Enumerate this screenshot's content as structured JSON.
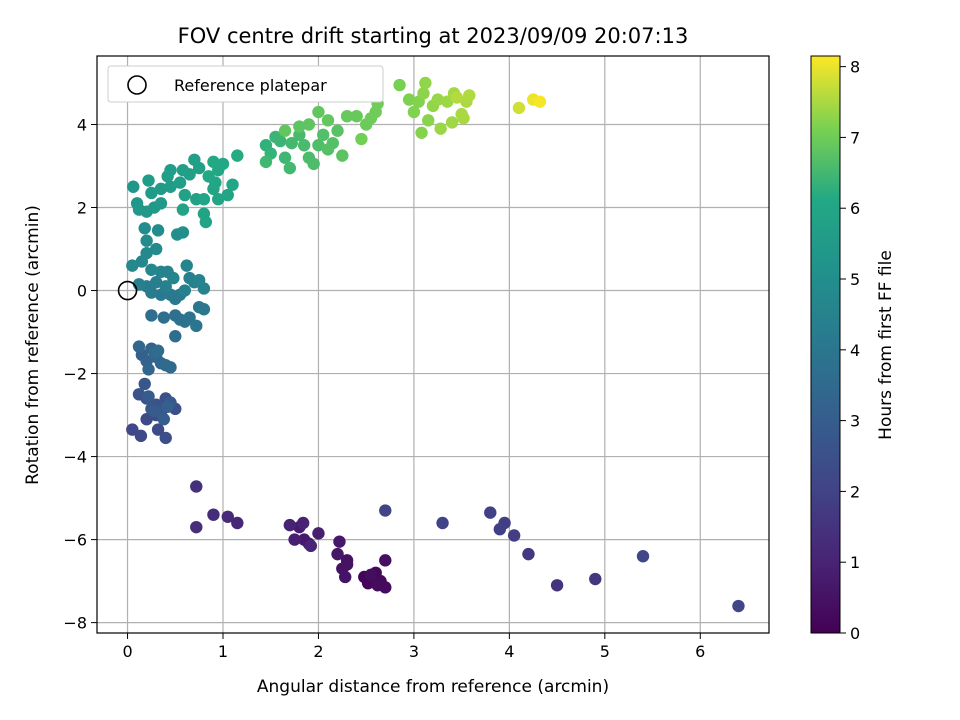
{
  "chart_data": {
    "type": "scatter",
    "title": "FOV centre drift starting at 2023/09/09 20:07:13",
    "xlabel": "Angular distance from reference (arcmin)",
    "ylabel": "Rotation from reference (arcmin)",
    "xlim": [
      -0.32,
      6.72
    ],
    "ylim": [
      -8.25,
      5.65
    ],
    "xticks": [
      0,
      1,
      2,
      3,
      4,
      5,
      6
    ],
    "yticks": [
      -8,
      -6,
      -4,
      -2,
      0,
      2,
      4
    ],
    "grid": true,
    "legend": {
      "placement": "top-left",
      "entries": [
        "Reference platepar"
      ]
    },
    "reference_point": {
      "x": 0,
      "y": 0
    },
    "colorbar": {
      "label": "Hours from first FF file",
      "range": [
        0,
        8.15
      ],
      "ticks": [
        0,
        1,
        2,
        3,
        4,
        5,
        6,
        7,
        8
      ],
      "colormap": "viridis"
    },
    "points": [
      {
        "x": 2.48,
        "y": -6.9,
        "c": 0.1
      },
      {
        "x": 2.52,
        "y": -7.05,
        "c": 0.15
      },
      {
        "x": 2.58,
        "y": -6.95,
        "c": 0.2
      },
      {
        "x": 2.6,
        "y": -6.8,
        "c": 0.22
      },
      {
        "x": 2.65,
        "y": -7.0,
        "c": 0.25
      },
      {
        "x": 2.7,
        "y": -7.15,
        "c": 0.3
      },
      {
        "x": 2.62,
        "y": -7.1,
        "c": 0.32
      },
      {
        "x": 2.55,
        "y": -6.85,
        "c": 0.35
      },
      {
        "x": 2.7,
        "y": -6.5,
        "c": 0.4
      },
      {
        "x": 2.3,
        "y": -6.5,
        "c": 0.45
      },
      {
        "x": 2.25,
        "y": -6.7,
        "c": 0.5
      },
      {
        "x": 2.28,
        "y": -6.9,
        "c": 0.55
      },
      {
        "x": 2.2,
        "y": -6.35,
        "c": 0.6
      },
      {
        "x": 2.22,
        "y": -6.05,
        "c": 0.65
      },
      {
        "x": 2.3,
        "y": -6.6,
        "c": 0.5
      },
      {
        "x": 1.9,
        "y": -6.1,
        "c": 0.7
      },
      {
        "x": 1.85,
        "y": -6.0,
        "c": 0.75
      },
      {
        "x": 1.8,
        "y": -5.7,
        "c": 0.8
      },
      {
        "x": 2.0,
        "y": -5.85,
        "c": 0.85
      },
      {
        "x": 1.75,
        "y": -6.0,
        "c": 0.9
      },
      {
        "x": 1.7,
        "y": -5.65,
        "c": 0.95
      },
      {
        "x": 1.84,
        "y": -5.6,
        "c": 1.0
      },
      {
        "x": 1.92,
        "y": -6.15,
        "c": 1.05
      },
      {
        "x": 1.15,
        "y": -5.6,
        "c": 1.15
      },
      {
        "x": 1.05,
        "y": -5.45,
        "c": 1.2
      },
      {
        "x": 0.9,
        "y": -5.4,
        "c": 1.3
      },
      {
        "x": 0.72,
        "y": -5.7,
        "c": 1.35
      },
      {
        "x": 0.72,
        "y": -4.72,
        "c": 1.4
      },
      {
        "x": 4.5,
        "y": -7.1,
        "c": 1.5
      },
      {
        "x": 4.9,
        "y": -6.95,
        "c": 1.6
      },
      {
        "x": 4.2,
        "y": -6.35,
        "c": 1.7
      },
      {
        "x": 4.05,
        "y": -5.9,
        "c": 1.8
      },
      {
        "x": 3.95,
        "y": -5.6,
        "c": 1.85
      },
      {
        "x": 3.9,
        "y": -5.75,
        "c": 1.9
      },
      {
        "x": 3.8,
        "y": -5.35,
        "c": 1.95
      },
      {
        "x": 3.3,
        "y": -5.6,
        "c": 2.0
      },
      {
        "x": 2.7,
        "y": -5.3,
        "c": 2.05
      },
      {
        "x": 5.4,
        "y": -6.4,
        "c": 2.1
      },
      {
        "x": 6.4,
        "y": -7.6,
        "c": 2.1
      },
      {
        "x": 0.05,
        "y": -3.35,
        "c": 2.2
      },
      {
        "x": 0.14,
        "y": -3.5,
        "c": 2.22
      },
      {
        "x": 0.2,
        "y": -3.1,
        "c": 2.25
      },
      {
        "x": 0.3,
        "y": -3.0,
        "c": 2.3
      },
      {
        "x": 0.32,
        "y": -3.35,
        "c": 2.35
      },
      {
        "x": 0.4,
        "y": -3.55,
        "c": 2.4
      },
      {
        "x": 0.5,
        "y": -2.85,
        "c": 2.45
      },
      {
        "x": 0.4,
        "y": -2.6,
        "c": 2.5
      },
      {
        "x": 0.3,
        "y": -2.75,
        "c": 2.55
      },
      {
        "x": 0.2,
        "y": -2.6,
        "c": 2.6
      },
      {
        "x": 0.12,
        "y": -2.5,
        "c": 2.65
      },
      {
        "x": 0.18,
        "y": -2.25,
        "c": 2.7
      },
      {
        "x": 0.25,
        "y": -2.85,
        "c": 2.75
      },
      {
        "x": 0.35,
        "y": -2.95,
        "c": 2.8
      },
      {
        "x": 0.45,
        "y": -2.7,
        "c": 2.85
      },
      {
        "x": 0.22,
        "y": -2.55,
        "c": 2.9
      },
      {
        "x": 0.28,
        "y": -2.9,
        "c": 2.95
      },
      {
        "x": 0.38,
        "y": -3.1,
        "c": 3.0
      },
      {
        "x": 0.42,
        "y": -2.8,
        "c": 3.05
      },
      {
        "x": 0.15,
        "y": -1.55,
        "c": 3.1
      },
      {
        "x": 0.2,
        "y": -1.7,
        "c": 3.15
      },
      {
        "x": 0.25,
        "y": -1.4,
        "c": 3.2
      },
      {
        "x": 0.3,
        "y": -1.6,
        "c": 3.25
      },
      {
        "x": 0.35,
        "y": -1.75,
        "c": 3.3
      },
      {
        "x": 0.12,
        "y": -1.35,
        "c": 3.35
      },
      {
        "x": 0.22,
        "y": -1.9,
        "c": 3.4
      },
      {
        "x": 0.28,
        "y": -1.5,
        "c": 3.45
      },
      {
        "x": 0.4,
        "y": -1.8,
        "c": 3.5
      },
      {
        "x": 0.45,
        "y": -1.85,
        "c": 3.55
      },
      {
        "x": 0.32,
        "y": -1.45,
        "c": 3.6
      },
      {
        "x": 0.5,
        "y": -1.1,
        "c": 3.62
      },
      {
        "x": 0.25,
        "y": -0.6,
        "c": 3.65
      },
      {
        "x": 0.38,
        "y": -0.65,
        "c": 3.7
      },
      {
        "x": 0.5,
        "y": -0.6,
        "c": 3.75
      },
      {
        "x": 0.55,
        "y": -0.7,
        "c": 3.8
      },
      {
        "x": 0.6,
        "y": -0.75,
        "c": 3.85
      },
      {
        "x": 0.65,
        "y": -0.65,
        "c": 3.9
      },
      {
        "x": 0.72,
        "y": -0.85,
        "c": 3.95
      },
      {
        "x": 0.75,
        "y": -0.4,
        "c": 4.0
      },
      {
        "x": 0.8,
        "y": -0.45,
        "c": 4.02
      },
      {
        "x": 0.5,
        "y": -0.2,
        "c": 4.05
      },
      {
        "x": 0.45,
        "y": -0.1,
        "c": 4.1
      },
      {
        "x": 0.55,
        "y": -0.1,
        "c": 4.12
      },
      {
        "x": 0.35,
        "y": -0.1,
        "c": 4.15
      },
      {
        "x": 0.25,
        "y": -0.05,
        "c": 4.2
      },
      {
        "x": 0.2,
        "y": 0.1,
        "c": 4.25
      },
      {
        "x": 0.3,
        "y": 0.2,
        "c": 4.3
      },
      {
        "x": 0.4,
        "y": 0.1,
        "c": 4.35
      },
      {
        "x": 0.6,
        "y": 0.0,
        "c": 4.4
      },
      {
        "x": 0.65,
        "y": 0.3,
        "c": 4.42
      },
      {
        "x": 0.7,
        "y": 0.2,
        "c": 4.45
      },
      {
        "x": 0.8,
        "y": 0.05,
        "c": 4.5
      },
      {
        "x": 0.75,
        "y": 0.25,
        "c": 4.52
      },
      {
        "x": 0.62,
        "y": 0.6,
        "c": 4.55
      },
      {
        "x": 0.48,
        "y": 0.3,
        "c": 4.6
      },
      {
        "x": 0.35,
        "y": 0.45,
        "c": 4.62
      },
      {
        "x": 0.25,
        "y": 0.5,
        "c": 4.65
      },
      {
        "x": 0.15,
        "y": 0.7,
        "c": 4.7
      },
      {
        "x": 0.05,
        "y": 0.6,
        "c": 4.72
      },
      {
        "x": 0.2,
        "y": 0.9,
        "c": 4.75
      },
      {
        "x": 0.3,
        "y": 1.0,
        "c": 4.8
      },
      {
        "x": 0.2,
        "y": 1.2,
        "c": 4.85
      },
      {
        "x": 0.32,
        "y": 1.45,
        "c": 4.9
      },
      {
        "x": 0.18,
        "y": 1.5,
        "c": 4.95
      },
      {
        "x": 0.52,
        "y": 1.35,
        "c": 5.0
      },
      {
        "x": 0.58,
        "y": 1.4,
        "c": 5.02
      },
      {
        "x": 0.12,
        "y": 0.15,
        "c": 4.35
      },
      {
        "x": 0.42,
        "y": 0.45,
        "c": 4.5
      },
      {
        "x": 0.06,
        "y": 2.5,
        "c": 5.3
      },
      {
        "x": 0.1,
        "y": 2.1,
        "c": 5.35
      },
      {
        "x": 0.12,
        "y": 1.95,
        "c": 5.4
      },
      {
        "x": 0.2,
        "y": 1.9,
        "c": 5.42
      },
      {
        "x": 0.28,
        "y": 2.0,
        "c": 5.45
      },
      {
        "x": 0.35,
        "y": 2.1,
        "c": 5.5
      },
      {
        "x": 0.25,
        "y": 2.35,
        "c": 5.52
      },
      {
        "x": 0.35,
        "y": 2.45,
        "c": 5.55
      },
      {
        "x": 0.22,
        "y": 2.65,
        "c": 5.58
      },
      {
        "x": 0.45,
        "y": 2.5,
        "c": 5.6
      },
      {
        "x": 0.42,
        "y": 2.75,
        "c": 5.62
      },
      {
        "x": 0.45,
        "y": 2.9,
        "c": 5.65
      },
      {
        "x": 0.55,
        "y": 2.6,
        "c": 5.68
      },
      {
        "x": 0.58,
        "y": 2.9,
        "c": 5.7
      },
      {
        "x": 0.65,
        "y": 2.8,
        "c": 5.72
      },
      {
        "x": 0.7,
        "y": 3.15,
        "c": 5.75
      },
      {
        "x": 0.75,
        "y": 2.95,
        "c": 5.78
      },
      {
        "x": 0.6,
        "y": 2.3,
        "c": 5.8
      },
      {
        "x": 0.72,
        "y": 2.2,
        "c": 5.82
      },
      {
        "x": 0.58,
        "y": 1.95,
        "c": 5.85
      },
      {
        "x": 0.8,
        "y": 1.85,
        "c": 5.88
      },
      {
        "x": 0.82,
        "y": 1.65,
        "c": 5.9
      },
      {
        "x": 0.8,
        "y": 2.2,
        "c": 5.92
      },
      {
        "x": 0.9,
        "y": 2.45,
        "c": 5.95
      },
      {
        "x": 0.95,
        "y": 2.2,
        "c": 5.98
      },
      {
        "x": 1.05,
        "y": 2.3,
        "c": 6.0
      },
      {
        "x": 1.1,
        "y": 2.55,
        "c": 6.02
      },
      {
        "x": 0.92,
        "y": 2.6,
        "c": 6.05
      },
      {
        "x": 0.95,
        "y": 2.9,
        "c": 6.08
      },
      {
        "x": 1.0,
        "y": 3.05,
        "c": 6.1
      },
      {
        "x": 0.9,
        "y": 3.1,
        "c": 6.12
      },
      {
        "x": 1.15,
        "y": 3.25,
        "c": 6.15
      },
      {
        "x": 0.85,
        "y": 2.75,
        "c": 6.1
      },
      {
        "x": 1.45,
        "y": 3.5,
        "c": 6.3
      },
      {
        "x": 1.5,
        "y": 3.3,
        "c": 6.35
      },
      {
        "x": 1.55,
        "y": 3.7,
        "c": 6.4
      },
      {
        "x": 1.6,
        "y": 3.6,
        "c": 6.42
      },
      {
        "x": 1.65,
        "y": 3.2,
        "c": 6.45
      },
      {
        "x": 1.45,
        "y": 3.1,
        "c": 6.48
      },
      {
        "x": 1.7,
        "y": 2.95,
        "c": 6.5
      },
      {
        "x": 1.72,
        "y": 3.55,
        "c": 6.52
      },
      {
        "x": 1.8,
        "y": 3.75,
        "c": 6.55
      },
      {
        "x": 1.85,
        "y": 3.5,
        "c": 6.58
      },
      {
        "x": 1.9,
        "y": 3.2,
        "c": 6.6
      },
      {
        "x": 1.95,
        "y": 3.05,
        "c": 6.62
      },
      {
        "x": 2.0,
        "y": 3.5,
        "c": 6.65
      },
      {
        "x": 2.05,
        "y": 3.75,
        "c": 6.68
      },
      {
        "x": 2.1,
        "y": 3.4,
        "c": 6.7
      },
      {
        "x": 2.15,
        "y": 3.55,
        "c": 6.72
      },
      {
        "x": 2.2,
        "y": 3.85,
        "c": 6.75
      },
      {
        "x": 2.25,
        "y": 3.25,
        "c": 6.78
      },
      {
        "x": 1.8,
        "y": 3.95,
        "c": 6.8
      },
      {
        "x": 1.9,
        "y": 4.0,
        "c": 6.82
      },
      {
        "x": 2.0,
        "y": 4.3,
        "c": 6.85
      },
      {
        "x": 2.1,
        "y": 4.1,
        "c": 6.88
      },
      {
        "x": 1.65,
        "y": 3.85,
        "c": 6.85
      },
      {
        "x": 2.3,
        "y": 4.2,
        "c": 6.9
      },
      {
        "x": 2.4,
        "y": 4.2,
        "c": 6.92
      },
      {
        "x": 2.5,
        "y": 4.0,
        "c": 6.95
      },
      {
        "x": 2.55,
        "y": 4.15,
        "c": 6.98
      },
      {
        "x": 2.6,
        "y": 4.3,
        "c": 7.0
      },
      {
        "x": 2.62,
        "y": 4.5,
        "c": 7.02
      },
      {
        "x": 2.45,
        "y": 3.65,
        "c": 7.05
      },
      {
        "x": 2.85,
        "y": 4.95,
        "c": 7.1
      },
      {
        "x": 2.95,
        "y": 4.6,
        "c": 7.15
      },
      {
        "x": 3.0,
        "y": 4.3,
        "c": 7.18
      },
      {
        "x": 3.05,
        "y": 4.55,
        "c": 7.2
      },
      {
        "x": 3.08,
        "y": 3.8,
        "c": 7.22
      },
      {
        "x": 3.15,
        "y": 4.1,
        "c": 7.25
      },
      {
        "x": 3.1,
        "y": 4.75,
        "c": 7.28
      },
      {
        "x": 3.12,
        "y": 5.0,
        "c": 7.3
      },
      {
        "x": 3.2,
        "y": 4.45,
        "c": 7.32
      },
      {
        "x": 3.25,
        "y": 4.6,
        "c": 7.35
      },
      {
        "x": 3.28,
        "y": 3.9,
        "c": 7.38
      },
      {
        "x": 3.35,
        "y": 4.55,
        "c": 7.4
      },
      {
        "x": 3.4,
        "y": 4.05,
        "c": 7.42
      },
      {
        "x": 3.42,
        "y": 4.75,
        "c": 7.45
      },
      {
        "x": 3.5,
        "y": 4.25,
        "c": 7.48
      },
      {
        "x": 3.52,
        "y": 4.15,
        "c": 7.5
      },
      {
        "x": 3.55,
        "y": 4.55,
        "c": 7.52
      },
      {
        "x": 3.58,
        "y": 4.7,
        "c": 7.55
      },
      {
        "x": 3.45,
        "y": 4.65,
        "c": 7.58
      },
      {
        "x": 4.1,
        "y": 4.4,
        "c": 7.8
      },
      {
        "x": 4.25,
        "y": 4.6,
        "c": 8.0
      },
      {
        "x": 4.32,
        "y": 4.55,
        "c": 8.1
      }
    ]
  }
}
